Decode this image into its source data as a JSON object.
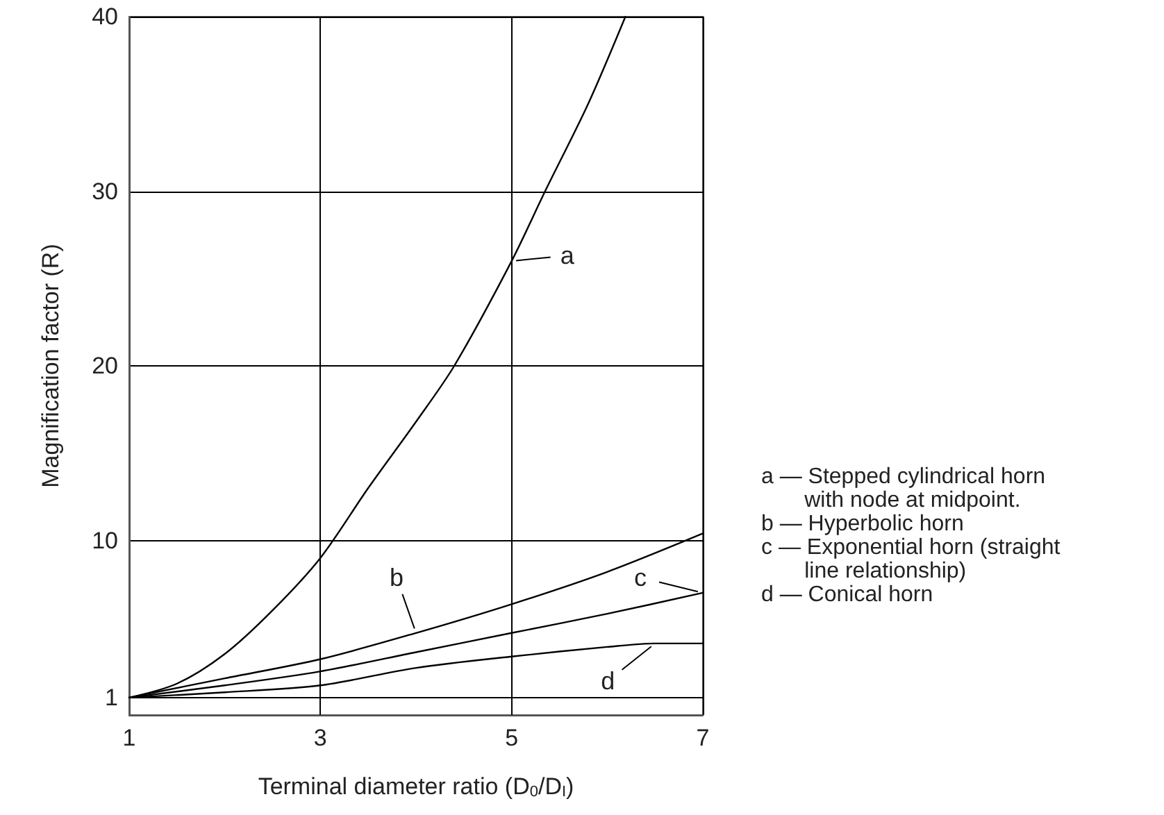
{
  "chart_data": {
    "type": "line",
    "xlabel": "Terminal diameter ratio (D$_{0}$/D$_{I}$)",
    "ylabel": "Magnification factor (R)",
    "xlim": [
      1,
      7
    ],
    "xticks": [
      1,
      3,
      5,
      7
    ],
    "ylim": [
      0,
      40
    ],
    "yticks": [
      1,
      10,
      20,
      30,
      40
    ],
    "grid": true,
    "legend": false,
    "marker": "none",
    "line_style": "solid",
    "series": [
      {
        "color": "#000000",
        "x": [
          1,
          1.5,
          2,
          2.5,
          3,
          3.5,
          4,
          4.4,
          5,
          5.35,
          5.8,
          6.19
        ],
        "values": [
          1,
          1.8,
          3.5,
          6,
          9,
          13,
          16.8,
          20,
          26,
          30,
          35,
          40
        ]
      },
      {
        "color": "#000000",
        "x": [
          1,
          2,
          3,
          4,
          5,
          6,
          7
        ],
        "values": [
          1,
          2.1,
          3.2,
          4.7,
          6.35,
          8.2,
          10.4
        ]
      },
      {
        "color": "#000000",
        "x": [
          1,
          2,
          3,
          4,
          5,
          6,
          7
        ],
        "values": [
          1,
          1.7,
          2.5,
          3.6,
          4.7,
          5.8,
          7.0
        ]
      },
      {
        "color": "#000000",
        "x": [
          1,
          2,
          3,
          4,
          5,
          6,
          6.5,
          7
        ],
        "values": [
          1,
          1.3,
          1.7,
          2.7,
          3.35,
          3.9,
          4.1,
          4.1
        ]
      }
    ],
    "annotations": [
      {
        "text": "a",
        "x": 5,
        "y": 26
      },
      {
        "text": "b",
        "x": 4,
        "y": 4.7
      },
      {
        "text": "c",
        "x": 7,
        "y": 7.0
      },
      {
        "text": "d",
        "x": 6.5,
        "y": 4.1
      },
      "a — Stepped cylindrical horn\n       with node at midpoint.",
      "b — Hyperbolic horn",
      "c — Exponential horn (straight\n       line relationship)",
      "d — Conical horn"
    ]
  }
}
